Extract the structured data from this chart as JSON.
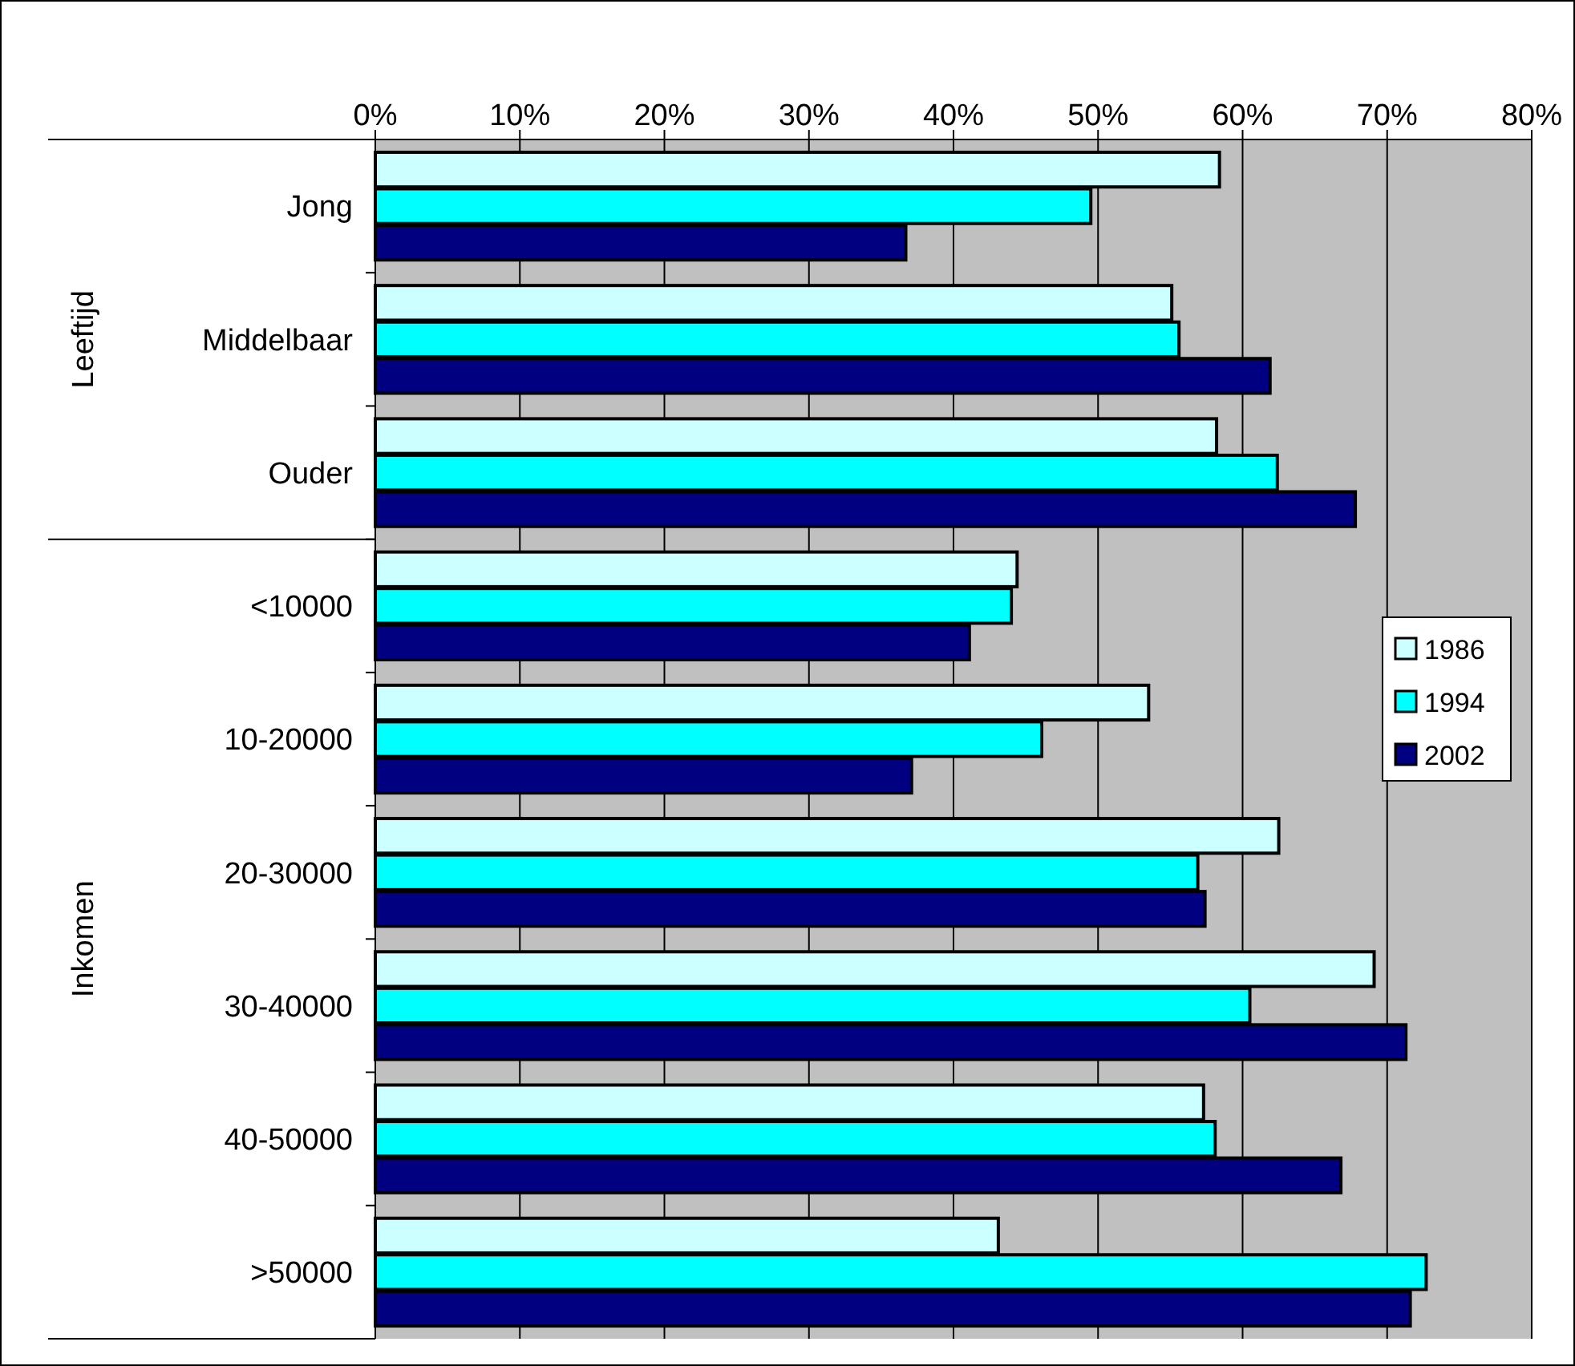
{
  "chart_data": {
    "type": "bar",
    "orientation": "horizontal",
    "categories": [
      "Jong",
      "Middelbaar",
      "Ouder",
      "<10000",
      "10-20000",
      "20-30000",
      "30-40000",
      "40-50000",
      ">50000"
    ],
    "series": [
      {
        "name": "1986",
        "color": "#ccffff",
        "values": [
          58.4,
          55.1,
          58.2,
          44.4,
          53.5,
          62.5,
          69.1,
          57.3,
          43.1
        ]
      },
      {
        "name": "1994",
        "color": "#00ffff",
        "values": [
          49.5,
          55.6,
          62.4,
          44.0,
          46.1,
          56.9,
          60.5,
          58.1,
          72.7
        ]
      },
      {
        "name": "2002",
        "color": "#000080",
        "values": [
          36.7,
          61.9,
          67.8,
          41.1,
          37.1,
          57.4,
          71.3,
          66.8,
          71.6
        ]
      }
    ],
    "xlim": [
      0,
      80
    ],
    "xticks": [
      {
        "value": 0,
        "label": "0%"
      },
      {
        "value": 10,
        "label": "10%"
      },
      {
        "value": 20,
        "label": "20%"
      },
      {
        "value": 30,
        "label": "30%"
      },
      {
        "value": 40,
        "label": "40%"
      },
      {
        "value": 50,
        "label": "50%"
      },
      {
        "value": 60,
        "label": "60%"
      },
      {
        "value": 70,
        "label": "70%"
      },
      {
        "value": 80,
        "label": "80%"
      }
    ],
    "grid": "x",
    "legend": "right",
    "annotations": [
      "Leeftijd",
      "Inkomen"
    ]
  }
}
